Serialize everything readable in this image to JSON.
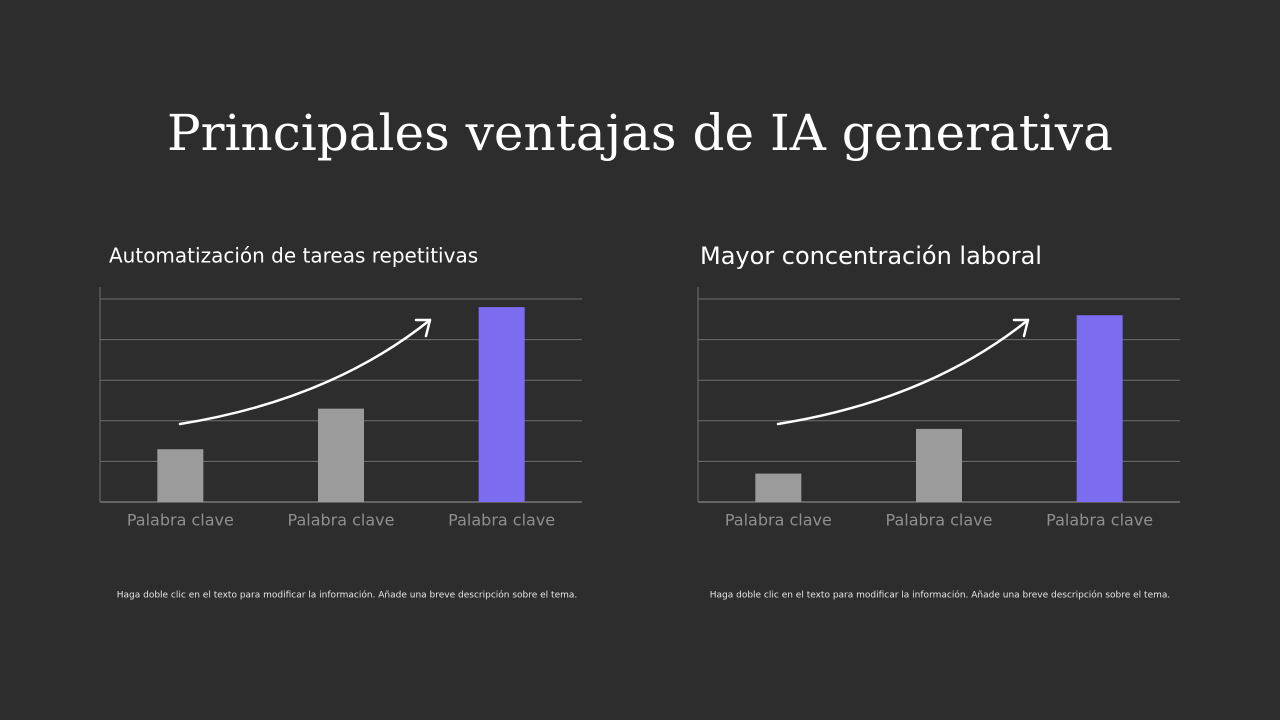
{
  "slide": {
    "title": "Principales ventajas de IA generativa"
  },
  "chart_data": [
    {
      "type": "bar",
      "title": "Automatización de tareas repetitivas",
      "categories": [
        "Palabra clave",
        "Palabra clave",
        "Palabra clave"
      ],
      "values": [
        1.3,
        2.3,
        4.8
      ],
      "colors": [
        "#9b9b9b",
        "#9b9b9b",
        "#7b6cf0"
      ],
      "ylim": [
        0,
        5
      ],
      "yticks": [
        0,
        1,
        2,
        3,
        4,
        5
      ],
      "grid": true,
      "caption": "Haga doble clic en el texto para modificar la información. Añade una breve descripción sobre el tema."
    },
    {
      "type": "bar",
      "title": "Mayor concentración laboral",
      "categories": [
        "Palabra clave",
        "Palabra clave",
        "Palabra clave"
      ],
      "values": [
        0.7,
        1.8,
        4.6
      ],
      "colors": [
        "#9b9b9b",
        "#9b9b9b",
        "#7b6cf0"
      ],
      "ylim": [
        0,
        5
      ],
      "yticks": [
        0,
        1,
        2,
        3,
        4,
        5
      ],
      "grid": true,
      "caption": "Haga doble clic en el texto para modificar la información. Añade una breve descripción sobre el tema."
    }
  ]
}
